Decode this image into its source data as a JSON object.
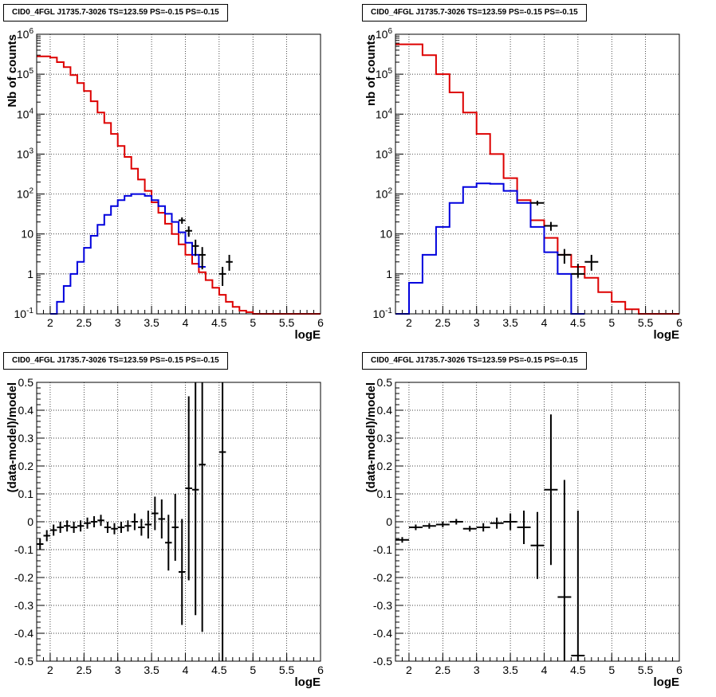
{
  "chart_data": [
    {
      "type": "line",
      "panel": "top-left",
      "title": "CID0_4FGL J1735.7-3026 TS=123.59 PS=-0.15 PS=-0.15",
      "xlabel": "logE",
      "ylabel": "Nb of counts",
      "xlim": [
        1.8,
        6.0
      ],
      "ylim": [
        0.1,
        1000000
      ],
      "yscale": "log",
      "grid": true,
      "x_ticks": [
        "2",
        "2.5",
        "3",
        "3.5",
        "4",
        "4.5",
        "5",
        "5.5",
        "6"
      ],
      "y_ticks": [
        "10^-1",
        "1",
        "10",
        "10^2",
        "10^3",
        "10^4",
        "10^5",
        "10^6"
      ],
      "bin_width": 0.1,
      "series": [
        {
          "color": "#dd0000",
          "style": "step",
          "x": [
            1.85,
            1.95,
            2.05,
            2.15,
            2.25,
            2.35,
            2.45,
            2.55,
            2.65,
            2.75,
            2.85,
            2.95,
            3.05,
            3.15,
            3.25,
            3.35,
            3.45,
            3.55,
            3.65,
            3.75,
            3.85,
            3.95,
            4.05,
            4.15,
            4.25,
            4.35,
            4.45,
            4.55,
            4.65,
            4.75,
            4.85,
            4.95,
            5.05,
            5.15,
            5.25,
            5.35,
            5.45,
            5.55,
            5.65,
            5.75,
            5.85,
            5.95
          ],
          "values": [
            280000,
            280000,
            260000,
            200000,
            150000,
            95000,
            60000,
            38000,
            21000,
            11000,
            6000,
            3200,
            1600,
            850,
            430,
            230,
            120,
            62,
            34,
            18,
            10,
            5.5,
            3,
            1.8,
            1.1,
            0.7,
            0.45,
            0.3,
            0.2,
            0.15,
            0.12,
            0.11,
            0.1,
            0.1,
            0.1,
            0.1,
            0.1,
            0.1,
            0.1,
            0.1,
            0.1,
            0.1
          ]
        },
        {
          "color": "#0000dd",
          "style": "step",
          "x": [
            2.05,
            2.15,
            2.25,
            2.35,
            2.45,
            2.55,
            2.65,
            2.75,
            2.85,
            2.95,
            3.05,
            3.15,
            3.25,
            3.35,
            3.45,
            3.55,
            3.65,
            3.75,
            3.85,
            3.95,
            4.05,
            4.15,
            4.25
          ],
          "values": [
            0.1,
            0.2,
            0.5,
            1.0,
            2.0,
            4.5,
            9,
            17,
            30,
            50,
            70,
            90,
            100,
            100,
            90,
            70,
            50,
            32,
            20,
            11,
            6,
            3,
            1.5
          ]
        },
        {
          "color": "#000000",
          "style": "errorbar",
          "x": [
            3.95,
            4.05,
            4.15,
            4.25,
            4.55,
            4.65
          ],
          "values": [
            22,
            12,
            5,
            3,
            1,
            2
          ],
          "yerr_low": [
            18,
            8.5,
            2.8,
            1.3,
            0.5,
            1.2
          ],
          "yerr_high": [
            26,
            15.5,
            7.2,
            4.7,
            1.5,
            3
          ]
        }
      ]
    },
    {
      "type": "line",
      "panel": "top-right",
      "title": "CID0_4FGL J1735.7-3026 TS=123.59 PS=-0.15 PS=-0.15",
      "xlabel": "logE",
      "ylabel": "nb of counts",
      "xlim": [
        1.8,
        6.0
      ],
      "ylim": [
        0.1,
        1000000
      ],
      "yscale": "log",
      "grid": true,
      "x_ticks": [
        "2",
        "2.5",
        "3",
        "3.5",
        "4",
        "4.5",
        "5",
        "5.5",
        "6"
      ],
      "y_ticks": [
        "10^-1",
        "1",
        "10",
        "10^2",
        "10^3",
        "10^4",
        "10^5",
        "10^6"
      ],
      "bin_width": 0.2,
      "series": [
        {
          "color": "#dd0000",
          "style": "step",
          "x": [
            1.9,
            2.1,
            2.3,
            2.5,
            2.7,
            2.9,
            3.1,
            3.3,
            3.5,
            3.7,
            3.9,
            4.1,
            4.3,
            4.5,
            4.7,
            4.9,
            5.1,
            5.3,
            5.5,
            5.7,
            5.9
          ],
          "values": [
            560000,
            560000,
            300000,
            100000,
            35000,
            11000,
            3200,
            1000,
            250,
            70,
            22,
            8,
            3,
            1.5,
            0.8,
            0.35,
            0.2,
            0.13,
            0.1,
            0.1,
            0.1
          ]
        },
        {
          "color": "#0000dd",
          "style": "step",
          "x": [
            1.9,
            2.1,
            2.3,
            2.5,
            2.7,
            2.9,
            3.1,
            3.3,
            3.5,
            3.7,
            3.9,
            4.1,
            4.3,
            4.5
          ],
          "values": [
            0.1,
            0.6,
            3,
            15,
            60,
            150,
            185,
            180,
            120,
            60,
            15,
            3.5,
            1.0,
            0.1
          ]
        },
        {
          "color": "#000000",
          "style": "errorbar",
          "x": [
            3.9,
            4.1,
            4.3,
            4.5,
            4.7
          ],
          "values": [
            60,
            16,
            3,
            1,
            2
          ],
          "yerr_low": [
            52,
            12,
            1.8,
            0.8,
            1.2
          ],
          "yerr_high": [
            68,
            20,
            4.2,
            1.8,
            3
          ]
        }
      ]
    },
    {
      "type": "scatter",
      "panel": "bottom-left",
      "title": "CID0_4FGL J1735.7-3026 TS=123.59 PS=-0.15 PS=-0.15",
      "xlabel": "logE",
      "ylabel": "(data-model)/model",
      "xlim": [
        1.8,
        6.0
      ],
      "ylim": [
        -0.5,
        0.5
      ],
      "grid": true,
      "x_ticks": [
        "2",
        "2.5",
        "3",
        "3.5",
        "4",
        "4.5",
        "5",
        "5.5",
        "6"
      ],
      "y_ticks": [
        "-0.5",
        "-0.4",
        "-0.3",
        "-0.2",
        "-0.1",
        "0",
        "0.1",
        "0.2",
        "0.3",
        "0.4",
        "0.5"
      ],
      "bin_width": 0.1,
      "series": [
        {
          "color": "#000000",
          "style": "errorbar",
          "x": [
            1.85,
            1.95,
            2.05,
            2.15,
            2.25,
            2.35,
            2.45,
            2.55,
            2.65,
            2.75,
            2.85,
            2.95,
            3.05,
            3.15,
            3.25,
            3.35,
            3.45,
            3.55,
            3.65,
            3.75,
            3.85,
            3.95,
            4.05,
            4.15,
            4.25,
            4.55
          ],
          "values": [
            -0.08,
            -0.05,
            -0.03,
            -0.02,
            -0.015,
            -0.02,
            -0.015,
            -0.005,
            0.0,
            0.005,
            -0.02,
            -0.025,
            -0.02,
            -0.015,
            0.0,
            -0.02,
            -0.01,
            0.03,
            0.01,
            -0.075,
            -0.02,
            -0.18,
            0.12,
            0.115,
            0.205,
            0.25
          ],
          "yerr": [
            0.02,
            0.02,
            0.02,
            0.02,
            0.02,
            0.02,
            0.02,
            0.02,
            0.02,
            0.02,
            0.02,
            0.02,
            0.02,
            0.02,
            0.03,
            0.03,
            0.05,
            0.06,
            0.07,
            0.1,
            0.12,
            0.19,
            0.33,
            0.45,
            0.6,
            0.8
          ]
        }
      ]
    },
    {
      "type": "scatter",
      "panel": "bottom-right",
      "title": "CID0_4FGL J1735.7-3026 TS=123.59 PS=-0.15 PS=-0.15",
      "xlabel": "logE",
      "ylabel": "(data-model)/model",
      "xlim": [
        1.8,
        6.0
      ],
      "ylim": [
        -0.5,
        0.5
      ],
      "grid": true,
      "x_ticks": [
        "2",
        "2.5",
        "3",
        "3.5",
        "4",
        "4.5",
        "5",
        "5.5",
        "6"
      ],
      "y_ticks": [
        "-0.5",
        "-0.4",
        "-0.3",
        "-0.2",
        "-0.1",
        "0",
        "0.1",
        "0.2",
        "0.3",
        "0.4",
        "0.5"
      ],
      "bin_width": 0.2,
      "series": [
        {
          "color": "#000000",
          "style": "errorbar",
          "x": [
            1.9,
            2.1,
            2.3,
            2.5,
            2.7,
            2.9,
            3.1,
            3.3,
            3.5,
            3.7,
            3.9,
            4.1,
            4.3,
            4.5
          ],
          "values": [
            -0.065,
            -0.02,
            -0.015,
            -0.01,
            0.0,
            -0.025,
            -0.02,
            -0.005,
            0.0,
            -0.02,
            -0.085,
            0.115,
            -0.27,
            -0.48
          ],
          "yerr": [
            0.01,
            0.01,
            0.01,
            0.01,
            0.01,
            0.01,
            0.015,
            0.02,
            0.03,
            0.06,
            0.12,
            0.27,
            0.42,
            0.52
          ]
        }
      ]
    }
  ]
}
